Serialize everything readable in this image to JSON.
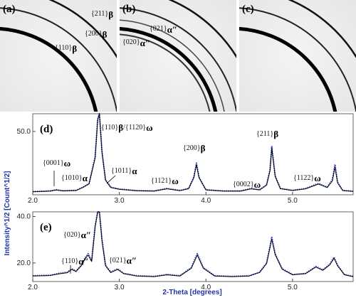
{
  "panels": {
    "a": {
      "label": "(a)",
      "annotations": [
        {
          "text": "{211}",
          "phase": "β"
        },
        {
          "text": "{200}",
          "phase": "β"
        },
        {
          "text": "{110}",
          "phase": "β"
        }
      ]
    },
    "b": {
      "label": "(b)",
      "annotations": [
        {
          "text": "{021}",
          "phase": "α″"
        },
        {
          "text": "{020}",
          "phase": "α″"
        }
      ]
    },
    "c": {
      "label": "(c)"
    },
    "d": {
      "label": "(d)",
      "annotations": [
        {
          "text": "{0001}",
          "phase": "ω"
        },
        {
          "text": "{1010}",
          "phase": "α"
        },
        {
          "text": "{110}",
          "phase": "β"
        },
        {
          "text": "/{1120}",
          "phase": "ω"
        },
        {
          "text": "{1011}",
          "phase": "α"
        },
        {
          "text": "{1121}",
          "phase": "ω"
        },
        {
          "text": "{200}",
          "phase": "β"
        },
        {
          "text": "{0002}",
          "phase": "ω"
        },
        {
          "text": "{211}",
          "phase": "β"
        },
        {
          "text": "{1122}",
          "phase": "ω"
        }
      ]
    },
    "e": {
      "label": "(e)",
      "annotations": [
        {
          "text": "{020}",
          "phase": "α″"
        },
        {
          "text": "{110}",
          "phase": "α″"
        },
        {
          "text": "{021}",
          "phase": "α″"
        }
      ]
    }
  },
  "chart_data": [
    {
      "type": "line",
      "panel": "d",
      "xlabel": "",
      "ylabel": "Intensity^1/2 [Count^1/2]",
      "xlim": [
        2.0,
        5.7
      ],
      "ylim": [
        0,
        64
      ],
      "x_ticks": [
        "2.0",
        "3.0",
        "4.0",
        "5.0"
      ],
      "y_ticks": [
        "50.0"
      ],
      "y_tick_values": [
        50
      ],
      "series": [
        {
          "style": "dotted-blue",
          "x": [
            2.0,
            2.2,
            2.27,
            2.35,
            2.5,
            2.58,
            2.65,
            2.72,
            2.75,
            2.77,
            2.8,
            2.84,
            2.9,
            3.0,
            3.2,
            3.4,
            3.55,
            3.7,
            3.8,
            3.86,
            3.89,
            3.92,
            4.0,
            4.2,
            4.4,
            4.52,
            4.62,
            4.7,
            4.74,
            4.76,
            4.8,
            4.86,
            5.0,
            5.15,
            5.3,
            5.4,
            5.46,
            5.49,
            5.52,
            5.58,
            5.7
          ],
          "values": [
            2.5,
            3.0,
            4.0,
            3.2,
            3.5,
            6.0,
            9.0,
            30,
            60,
            64,
            34,
            12,
            6.0,
            4.5,
            3.3,
            3.0,
            5.0,
            3.4,
            5.0,
            14,
            25,
            14,
            4.0,
            3.0,
            3.0,
            5.0,
            4.0,
            8.0,
            20,
            38,
            15,
            5.0,
            3.5,
            5.0,
            9.0,
            6.0,
            12,
            24,
            10,
            3.5,
            2.8
          ]
        },
        {
          "style": "solid-black",
          "x": [
            2.0,
            2.2,
            2.27,
            2.35,
            2.5,
            2.58,
            2.65,
            2.72,
            2.75,
            2.77,
            2.8,
            2.84,
            2.9,
            3.0,
            3.2,
            3.4,
            3.55,
            3.7,
            3.8,
            3.86,
            3.89,
            3.92,
            4.0,
            4.2,
            4.4,
            4.52,
            4.62,
            4.7,
            4.74,
            4.76,
            4.8,
            4.86,
            5.0,
            5.15,
            5.3,
            5.4,
            5.46,
            5.49,
            5.52,
            5.58,
            5.7
          ],
          "values": [
            2.4,
            2.9,
            3.8,
            3.1,
            3.4,
            5.8,
            8.6,
            29,
            59,
            64,
            33,
            11.5,
            5.8,
            4.3,
            3.2,
            2.9,
            4.7,
            3.3,
            4.8,
            13.5,
            24,
            13.5,
            3.9,
            2.9,
            2.9,
            4.7,
            3.9,
            7.6,
            19,
            37,
            14.5,
            4.8,
            3.4,
            4.7,
            8.5,
            5.7,
            11,
            22,
            9.5,
            3.3,
            2.7
          ]
        }
      ]
    },
    {
      "type": "line",
      "panel": "e",
      "xlabel": "2-Theta [degrees]",
      "ylabel": "",
      "xlim": [
        2.0,
        5.7
      ],
      "ylim": [
        12,
        42
      ],
      "x_ticks": [
        "2.0",
        "3.0",
        "4.0",
        "5.0"
      ],
      "y_ticks": [
        "20.0",
        "40.0"
      ],
      "y_tick_values": [
        20,
        40
      ],
      "series": [
        {
          "style": "dotted-blue",
          "x": [
            2.0,
            2.2,
            2.3,
            2.4,
            2.45,
            2.5,
            2.57,
            2.6,
            2.64,
            2.68,
            2.72,
            2.75,
            2.77,
            2.8,
            2.84,
            2.9,
            2.98,
            3.05,
            3.2,
            3.4,
            3.55,
            3.7,
            3.83,
            3.9,
            3.97,
            4.1,
            4.3,
            4.5,
            4.62,
            4.7,
            4.76,
            4.8,
            4.88,
            5.0,
            5.15,
            5.27,
            5.35,
            5.43,
            5.48,
            5.52,
            5.6,
            5.7
          ],
          "values": [
            14.5,
            14.7,
            15.5,
            16.0,
            17.5,
            16.5,
            19.5,
            22,
            24,
            21,
            36,
            42,
            42,
            30,
            19,
            16,
            17.5,
            15.5,
            14.5,
            14.2,
            15.0,
            14.5,
            18.0,
            24,
            18.0,
            14.5,
            14.2,
            14.5,
            16.0,
            20,
            31,
            24,
            17.5,
            15.0,
            15.5,
            18.5,
            17.0,
            19.5,
            22.5,
            19.0,
            15.0,
            14.2
          ]
        },
        {
          "style": "solid-black",
          "x": [
            2.0,
            2.2,
            2.3,
            2.4,
            2.45,
            2.5,
            2.57,
            2.6,
            2.64,
            2.68,
            2.72,
            2.75,
            2.77,
            2.8,
            2.84,
            2.9,
            2.98,
            3.05,
            3.2,
            3.4,
            3.55,
            3.7,
            3.83,
            3.9,
            3.97,
            4.1,
            4.3,
            4.5,
            4.62,
            4.7,
            4.76,
            4.8,
            4.88,
            5.0,
            5.15,
            5.27,
            5.35,
            5.43,
            5.48,
            5.52,
            5.6,
            5.7
          ],
          "values": [
            14.4,
            14.6,
            15.3,
            15.8,
            17.2,
            16.3,
            19.2,
            21.6,
            23.4,
            20.6,
            35.4,
            42,
            42,
            29.4,
            18.8,
            15.9,
            17.2,
            15.4,
            14.4,
            14.1,
            14.9,
            14.4,
            17.7,
            23.4,
            17.7,
            14.4,
            14.1,
            14.4,
            15.9,
            19.7,
            30.2,
            23.5,
            17.3,
            14.9,
            15.4,
            18.2,
            16.8,
            19.2,
            22,
            18.8,
            14.9,
            14.1
          ]
        }
      ]
    }
  ]
}
